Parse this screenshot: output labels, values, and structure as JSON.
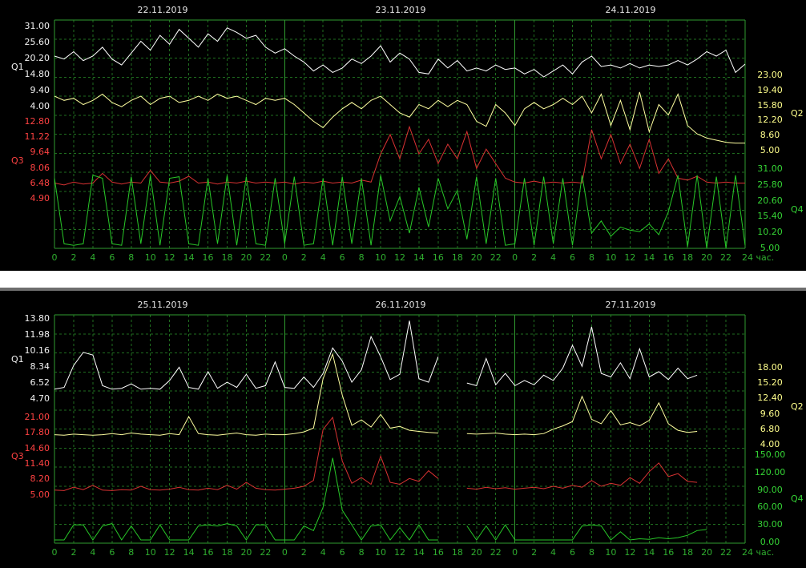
{
  "colors": {
    "background": "#000000",
    "grid_solid": "#2f9b2f",
    "grid_dashed": "#1f6e1f",
    "x_tick_text": "#2fae2f",
    "date_text": "#e6e6e6",
    "divider_bar": "#ffffff",
    "divider_line": "#6e6e6e",
    "q1": "#ffffff",
    "q2": "#ffff8c",
    "q3": "#ff4242",
    "q4": "#35d435"
  },
  "chart_data": {
    "type": "line",
    "grid": "on",
    "x_unit": "час.",
    "panels": [
      {
        "name": "top-trend",
        "dates": [
          "22.11.2019",
          "23.11.2019",
          "24.11.2019"
        ],
        "days": 3,
        "hours_per_day": 24,
        "x_tick_step": 2,
        "x_tick_labels": [
          "0",
          "2",
          "4",
          "6",
          "8",
          "10",
          "12",
          "14",
          "16",
          "18",
          "20",
          "22"
        ],
        "x_end_label": "24 час.",
        "axes": [
          {
            "name": "Q1",
            "side": "left",
            "color": "#f2f2f2",
            "max": 31.0,
            "min": 4.0,
            "ticks": [
              "31.00",
              "25.60",
              "20.20",
              "14.80",
              "9.40",
              "4.00"
            ],
            "band": [
              0.028,
              0.379
            ]
          },
          {
            "name": "Q3",
            "side": "left",
            "color": "#ff4242",
            "max": 12.8,
            "min": 4.9,
            "ticks": [
              "12.80",
              "11.22",
              "9.64",
              "8.06",
              "6.48",
              "4.90"
            ],
            "band": [
              0.446,
              0.782
            ]
          },
          {
            "name": "Q2",
            "side": "right",
            "color": "#ffff8c",
            "max": 23.0,
            "min": 5.0,
            "ticks": [
              "23.00",
              "19.40",
              "15.80",
              "12.20",
              "8.60",
              "5.00"
            ],
            "band": [
              0.242,
              0.572
            ]
          },
          {
            "name": "Q4",
            "side": "right",
            "color": "#35d435",
            "max": 31.0,
            "min": 5.0,
            "ticks": [
              "31.00",
              "25.80",
              "20.60",
              "15.40",
              "10.20",
              "5.00"
            ],
            "band": [
              0.653,
              1.0
            ]
          }
        ],
        "series": [
          {
            "axis": "Q1",
            "color": "#ffffff",
            "values": [
              21,
              20,
              22.5,
              19.5,
              21,
              24,
              20,
              18,
              22,
              26,
              23,
              28,
              25,
              30,
              27,
              24,
              28.5,
              26,
              30.5,
              29,
              27,
              28,
              24,
              22,
              23.5,
              21,
              19,
              16,
              18,
              15.5,
              17,
              20,
              18.5,
              21,
              24.5,
              19,
              22,
              20,
              15.5,
              15,
              20,
              17,
              19.5,
              16,
              17,
              16,
              18,
              16.5,
              17,
              15,
              16.5,
              14,
              16,
              18,
              15,
              19,
              21,
              17.5,
              18,
              17,
              18.5,
              17,
              18,
              17.5,
              18,
              19.5,
              18,
              20,
              22.5,
              21,
              23,
              15.5,
              18.3
            ]
          },
          {
            "axis": "Q2",
            "color": "#ffffa0",
            "values": [
              18,
              17,
              17.5,
              16,
              17,
              18.5,
              16.5,
              15.5,
              17,
              18,
              16,
              17.5,
              18,
              16.5,
              17,
              18,
              17,
              18.5,
              17.5,
              18,
              17,
              16,
              17.5,
              17,
              17.5,
              16,
              14,
              12,
              10.5,
              13,
              15,
              16.5,
              15,
              17,
              18,
              16,
              14,
              13,
              16,
              15,
              17,
              15.5,
              17,
              16,
              12,
              10.8,
              16,
              14,
              11,
              15,
              16.5,
              15,
              16,
              17.5,
              16,
              18,
              14,
              18.5,
              11,
              17,
              10,
              19,
              9.5,
              16,
              13.5,
              18.5,
              11,
              9,
              8,
              7.5,
              7,
              6.8,
              6.8
            ]
          },
          {
            "axis": "Q3",
            "color": "#d83232",
            "values": [
              6.5,
              6.3,
              6.6,
              6.4,
              6.5,
              7.5,
              6.6,
              6.4,
              6.6,
              6.5,
              7.8,
              6.6,
              6.5,
              6.7,
              7.2,
              6.5,
              6.6,
              6.4,
              6.6,
              6.5,
              6.7,
              6.5,
              6.6,
              6.5,
              6.6,
              6.4,
              6.6,
              6.5,
              6.7,
              6.5,
              6.6,
              6.5,
              6.8,
              6.6,
              9.5,
              11.5,
              9,
              12.3,
              9.5,
              11,
              8.5,
              10.5,
              9,
              11.8,
              8,
              10,
              8.5,
              7,
              6.6,
              6.5,
              6.7,
              6.5,
              6.6,
              6.5,
              6.6,
              6.5,
              12,
              9,
              11.5,
              8.5,
              10.5,
              8,
              11,
              7.5,
              9,
              7,
              6.8,
              7.2,
              6.6,
              6.5,
              6.6,
              6.5,
              6.5
            ]
          },
          {
            "axis": "Q4",
            "color": "#28c828",
            "values": [
              28,
              6.5,
              6,
              6.5,
              29,
              28,
              6.5,
              6,
              28.5,
              6.5,
              29,
              6,
              28,
              28.5,
              6.5,
              6,
              28,
              6.5,
              29,
              6,
              28.5,
              6.5,
              6,
              28,
              6.5,
              28.5,
              6,
              6.5,
              28,
              6,
              28.5,
              6.5,
              28,
              6,
              29,
              14,
              22,
              10,
              25,
              12,
              28,
              18,
              24,
              8,
              28.5,
              6.5,
              28,
              6,
              6.5,
              28,
              6,
              28.5,
              6.5,
              28,
              6,
              29,
              10,
              14,
              9,
              12,
              11,
              10.5,
              13,
              9.5,
              17,
              29,
              5.5,
              29,
              5,
              28.5,
              5,
              29,
              6
            ]
          }
        ]
      },
      {
        "name": "bottom-trend",
        "dates": [
          "25.11.2019",
          "26.11.2019",
          "27.11.2019"
        ],
        "days": 3,
        "hours_per_day": 24,
        "x_tick_step": 2,
        "x_tick_labels": [
          "0",
          "2",
          "4",
          "6",
          "8",
          "10",
          "12",
          "14",
          "16",
          "18",
          "20",
          "22"
        ],
        "x_end_label": "24 час.",
        "axes": [
          {
            "name": "Q1",
            "side": "left",
            "color": "#f2f2f2",
            "max": 13.8,
            "min": 4.7,
            "ticks": [
              "13.80",
              "11.98",
              "10.16",
              "8.34",
              "6.52",
              "4.70"
            ],
            "band": [
              0.018,
              0.368
            ]
          },
          {
            "name": "Q3",
            "side": "left",
            "color": "#ff4242",
            "max": 21.0,
            "min": 5.0,
            "ticks": [
              "21.00",
              "17.80",
              "14.60",
              "11.40",
              "8.20",
              "5.00"
            ],
            "band": [
              0.449,
              0.789
            ]
          },
          {
            "name": "Q2",
            "side": "right",
            "color": "#ffff8c",
            "max": 18.0,
            "min": 4.0,
            "ticks": [
              "18.00",
              "15.20",
              "12.40",
              "9.60",
              "6.80",
              "4.00"
            ],
            "band": [
              0.232,
              0.568
            ]
          },
          {
            "name": "Q4",
            "side": "right",
            "color": "#35d435",
            "max": 150.0,
            "min": 0.0,
            "ticks": [
              "150.00",
              "120.00",
              "90.00",
              "60.00",
              "30.00",
              "0.00"
            ],
            "band": [
              0.614,
              0.996
            ]
          }
        ],
        "series": [
          {
            "axis": "Q1",
            "color": "#ffffff",
            "values": [
              5.8,
              6,
              8.5,
              10,
              9.7,
              6.2,
              5.8,
              5.9,
              6.4,
              5.8,
              5.9,
              5.8,
              6.8,
              8.3,
              6,
              5.8,
              7.8,
              5.9,
              6.6,
              6,
              7.5,
              5.9,
              6.2,
              8.9,
              6,
              5.9,
              7.2,
              6,
              7.6,
              10.5,
              9,
              6.6,
              8,
              11.8,
              9.5,
              6.9,
              7.5,
              13.6,
              7,
              6.6,
              9.5,
              null,
              null,
              6.5,
              6.2,
              9.3,
              6.3,
              7.6,
              6.2,
              6.8,
              6.3,
              7.4,
              6.8,
              8.2,
              10.8,
              8.4,
              12.9,
              7.6,
              7.2,
              8.8,
              7,
              10.4,
              7.2,
              7.8,
              6.9,
              8.2,
              7,
              7.4,
              null,
              null,
              null,
              null,
              null
            ]
          },
          {
            "axis": "Q2",
            "color": "#ffffa0",
            "values": [
              5.8,
              5.7,
              5.9,
              5.8,
              5.7,
              5.8,
              6,
              5.8,
              6.1,
              5.9,
              5.8,
              5.7,
              6,
              5.8,
              9.1,
              6,
              5.8,
              5.7,
              5.9,
              6.1,
              5.8,
              5.7,
              5.9,
              5.8,
              5.8,
              6,
              6.3,
              7,
              16,
              20.5,
              13,
              7.5,
              8.5,
              7.2,
              9.5,
              7,
              7.3,
              6.6,
              6.4,
              6.2,
              6.1,
              null,
              null,
              6,
              5.9,
              6,
              6.1,
              5.9,
              5.8,
              5.9,
              5.8,
              6,
              6.8,
              7.4,
              8.2,
              12.8,
              8.6,
              7.8,
              10.2,
              7.6,
              8,
              7.4,
              8.4,
              11.6,
              7.8,
              6.6,
              6.2,
              6.4,
              null,
              null,
              null,
              null,
              null
            ]
          },
          {
            "axis": "Q3",
            "color": "#d83232",
            "values": [
              6,
              5.9,
              6.6,
              6.1,
              7,
              6,
              5.9,
              6.1,
              6,
              6.8,
              6.1,
              6,
              6.2,
              6.6,
              6.1,
              6,
              6.4,
              6.1,
              7,
              6.2,
              7.6,
              6.4,
              6.1,
              6,
              6.2,
              6.4,
              6.8,
              8,
              18.5,
              21,
              12,
              7.4,
              8.6,
              7.2,
              13,
              7.6,
              7.2,
              8.4,
              7.8,
              10,
              8.4,
              null,
              null,
              6.4,
              6.2,
              6.6,
              6.3,
              6.5,
              6.2,
              6.4,
              6.6,
              6.3,
              6.8,
              6.4,
              7,
              6.6,
              8,
              6.8,
              7.4,
              7,
              8.6,
              7.4,
              9.8,
              11.6,
              8.8,
              9.4,
              7.8,
              7.6,
              null,
              null,
              null,
              null,
              null
            ]
          },
          {
            "axis": "Q4",
            "color": "#28c828",
            "values": [
              4,
              4,
              30,
              30,
              4,
              28,
              32,
              4,
              28,
              4,
              4,
              30,
              4,
              4,
              4,
              28,
              30,
              28,
              32,
              28,
              4,
              30,
              30,
              4,
              4,
              4,
              28,
              20,
              60,
              145,
              55,
              30,
              4,
              28,
              30,
              4,
              25,
              4,
              30,
              4,
              4,
              null,
              null,
              28,
              4,
              28,
              4,
              30,
              4,
              4,
              4,
              4,
              4,
              4,
              4,
              28,
              30,
              28,
              4,
              18,
              4,
              6,
              5,
              8,
              6,
              8,
              12,
              20,
              22,
              null,
              null,
              null,
              null,
              null
            ]
          }
        ]
      }
    ]
  }
}
